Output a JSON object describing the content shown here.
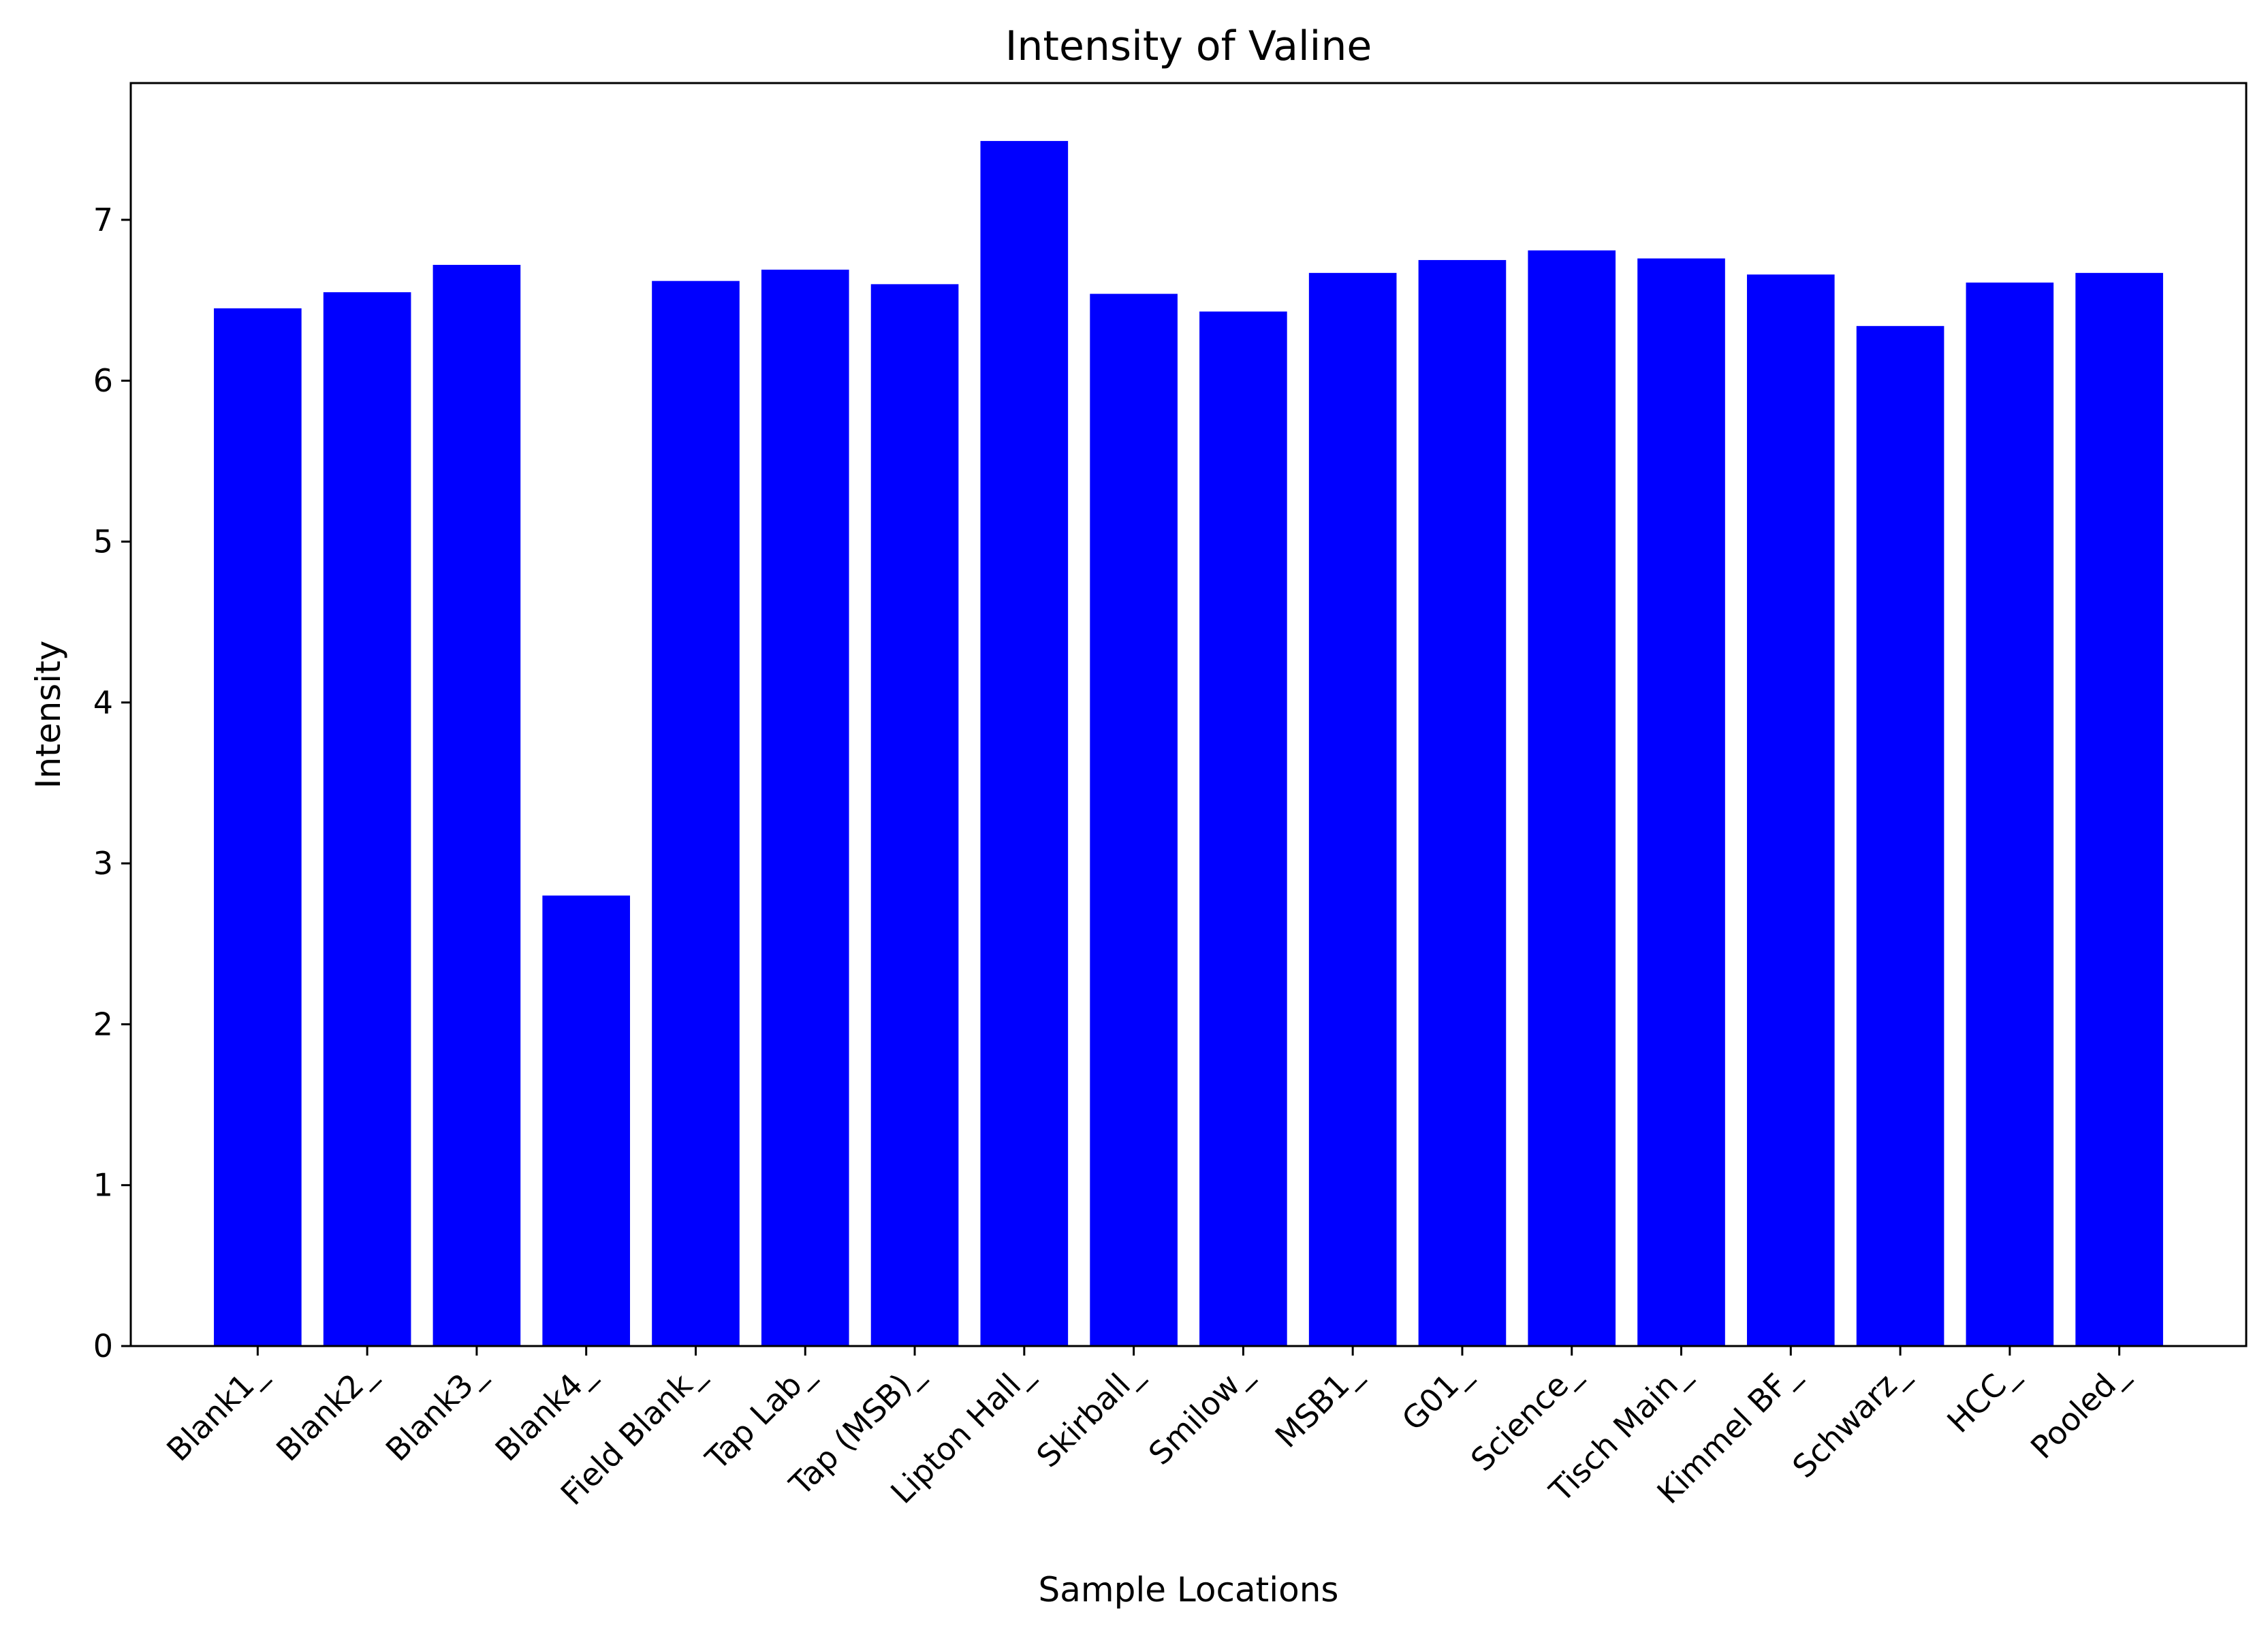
{
  "chart_data": {
    "type": "bar",
    "title": "Intensity of Valine",
    "xlabel": "Sample Locations",
    "ylabel": "Intensity",
    "ylim": [
      0,
      7.85
    ],
    "yticks": [
      "0",
      "1",
      "2",
      "3",
      "4",
      "5",
      "6",
      "7"
    ],
    "grid": false,
    "legend": "none",
    "bar_color": "#0000ff",
    "categories": [
      "Blank1_",
      "Blank2_",
      "Blank3_",
      "Blank4_",
      "Field Blank_",
      "Tap Lab_",
      "Tap (MSB)_",
      "Lipton Hall_",
      "Skirball_",
      "Smilow_",
      "MSB1_",
      "G01_",
      "Science_",
      "Tisch Main_",
      "Kimmel BF_",
      "Schwarz_",
      "HCC_",
      "Pooled_"
    ],
    "values": [
      6.45,
      6.55,
      6.72,
      2.8,
      6.62,
      6.69,
      6.6,
      7.49,
      6.54,
      6.43,
      6.67,
      6.75,
      6.81,
      6.76,
      6.66,
      6.34,
      6.61,
      6.67
    ]
  }
}
